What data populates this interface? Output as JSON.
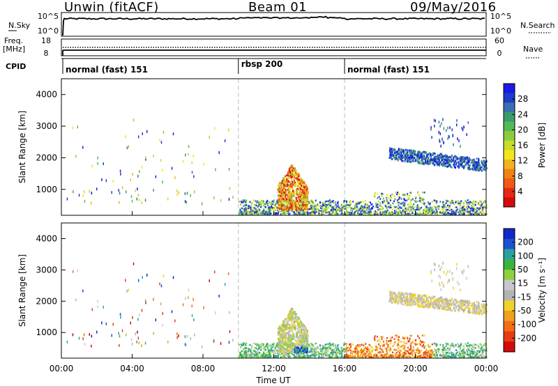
{
  "header": {
    "site": "Unwin (fitACF)",
    "beam": "Beam 01",
    "date": "09/May/2016"
  },
  "panels": {
    "nsky": {
      "label": "N.Sky",
      "right_label": "N.Search",
      "ticks_left": [
        "10^5",
        "10^0"
      ],
      "ticks_right": [
        "10^5",
        "10^0"
      ]
    },
    "freq": {
      "label": "Freq.",
      "unit": "[MHz]",
      "right_label": "Nave",
      "ticks_left": [
        "18",
        "8"
      ],
      "ticks_right": [
        "60",
        "0"
      ]
    },
    "cpid": {
      "label": "CPID",
      "segments": [
        "normal (fast) 151",
        "rbsp 200",
        "normal (fast) 151"
      ]
    }
  },
  "colorbars": {
    "power": {
      "label": "Power [dB]",
      "ticks": [
        "28",
        "24",
        "20",
        "16",
        "12",
        "8",
        "4"
      ],
      "colors": [
        "#1a1ae6",
        "#1e3ccc",
        "#3b6fb0",
        "#3c9a6e",
        "#55b85a",
        "#8ccc3c",
        "#c8dc28",
        "#f0e61e",
        "#f0b41e",
        "#f08214",
        "#f05a14",
        "#e62814",
        "#d70a0a"
      ]
    },
    "velocity": {
      "label": "Velocity [m s⁻¹]",
      "ticks": [
        "200",
        "100",
        "50",
        "15",
        "-15",
        "-50",
        "-100",
        "-200"
      ],
      "colors": [
        "#1428c8",
        "#1e50d2",
        "#2aa0a0",
        "#3cb43c",
        "#8cd23c",
        "#c8c8c8",
        "#b4b4b4",
        "#f0d228",
        "#f0a01e",
        "#f06e14",
        "#e63c14",
        "#d20a0a"
      ]
    }
  },
  "axes": {
    "ylabel": "Slant Range [km]",
    "xlabel": "Time UT",
    "y_ticks": [
      "1000",
      "2000",
      "3000",
      "4000"
    ],
    "x_ticks": [
      "00:00",
      "04:00",
      "08:00",
      "12:00",
      "16:00",
      "20:00",
      "00:00"
    ]
  },
  "chart_data": [
    {
      "type": "heatmap",
      "title": "",
      "xlabel": "",
      "ylabel": "Slant Range [km]",
      "xlim": [
        0,
        24
      ],
      "ylim": [
        180,
        4500
      ],
      "colorbar": "Power [dB]",
      "colorbar_range": [
        0,
        30
      ],
      "mode_boundaries_ut_hours": [
        10,
        16
      ],
      "regions": [
        {
          "t": [
            12.2,
            13.9
          ],
          "range_km": [
            300,
            1800
          ],
          "value": "8-28 dB"
        },
        {
          "t": [
            10,
            24
          ],
          "range_km": [
            180,
            600
          ],
          "value": "4-16 dB"
        },
        {
          "t": [
            18.5,
            24
          ],
          "range_km": [
            1500,
            2300
          ],
          "value": "4-12 dB"
        }
      ]
    },
    {
      "type": "heatmap",
      "title": "",
      "xlabel": "Time UT",
      "ylabel": "Slant Range [km]",
      "xlim": [
        0,
        24
      ],
      "ylim": [
        180,
        4500
      ],
      "colorbar": "Velocity [m s-1]",
      "colorbar_range": [
        -200,
        200
      ],
      "mode_boundaries_ut_hours": [
        10,
        16
      ],
      "regions": [
        {
          "t": [
            12.2,
            13.9
          ],
          "range_km": [
            500,
            1800
          ],
          "value": "-15 to 15 m/s"
        },
        {
          "t": [
            13.1,
            14.2
          ],
          "range_km": [
            180,
            500
          ],
          "value": "100-200 m/s"
        },
        {
          "t": [
            16,
            20.5
          ],
          "range_km": [
            180,
            700
          ],
          "value": "-50 to -100 m/s"
        },
        {
          "t": [
            18.5,
            24
          ],
          "range_km": [
            1500,
            2300
          ],
          "value": "-15 to 15 m/s"
        }
      ]
    }
  ]
}
